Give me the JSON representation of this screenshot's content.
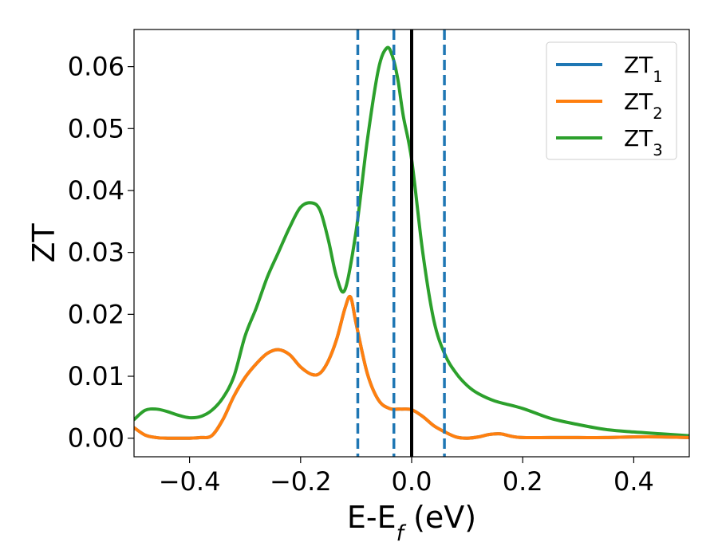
{
  "chart_data": {
    "type": "line",
    "xlabel": "E-E_f (eV)",
    "ylabel": "ZT",
    "xlim": [
      -0.5,
      0.5
    ],
    "ylim": [
      -0.003,
      0.066
    ],
    "x_ticks": [
      -0.4,
      -0.2,
      0.0,
      0.2,
      0.4
    ],
    "x_tick_labels": [
      "−0.4",
      "−0.2",
      "0.0",
      "0.2",
      "0.4"
    ],
    "y_ticks": [
      0.0,
      0.01,
      0.02,
      0.03,
      0.04,
      0.05,
      0.06
    ],
    "y_tick_labels": [
      "0.00",
      "0.01",
      "0.02",
      "0.03",
      "0.04",
      "0.05",
      "0.06"
    ],
    "grid": false,
    "legend_position": "top-right",
    "vertical_lines": [
      {
        "x": -0.097,
        "style": "dashed",
        "color": "#1f77b4"
      },
      {
        "x": -0.032,
        "style": "dashed",
        "color": "#1f77b4"
      },
      {
        "x": 0.0,
        "style": "solid",
        "color": "#000000"
      },
      {
        "x": 0.059,
        "style": "dashed",
        "color": "#1f77b4"
      }
    ],
    "series": [
      {
        "name": "ZT_1",
        "color": "#1f77b4",
        "x": [
          -0.5,
          -0.48,
          -0.46,
          -0.44,
          -0.42,
          -0.4,
          -0.38,
          -0.36,
          -0.34,
          -0.32,
          -0.3,
          -0.28,
          -0.26,
          -0.24,
          -0.22,
          -0.2,
          -0.18,
          -0.165,
          -0.15,
          -0.135,
          -0.12,
          -0.11,
          -0.1,
          -0.08,
          -0.06,
          -0.04,
          -0.02,
          0.0,
          0.02,
          0.04,
          0.06,
          0.08,
          0.1,
          0.12,
          0.14,
          0.16,
          0.18,
          0.2,
          0.25,
          0.3,
          0.35,
          0.4,
          0.45,
          0.5
        ],
        "y": [
          0.0017,
          0.0005,
          0.0001,
          0.0,
          0.0,
          0.0,
          0.0001,
          0.0004,
          0.003,
          0.0068,
          0.0098,
          0.012,
          0.0137,
          0.0143,
          0.0135,
          0.0115,
          0.0103,
          0.0105,
          0.0125,
          0.016,
          0.021,
          0.0228,
          0.0185,
          0.0105,
          0.0062,
          0.0048,
          0.0047,
          0.0046,
          0.0035,
          0.002,
          0.001,
          0.0002,
          0.0,
          0.0002,
          0.0006,
          0.0007,
          0.0003,
          0.0001,
          0.0001,
          0.0001,
          0.0001,
          0.0002,
          0.0002,
          0.0001
        ]
      },
      {
        "name": "ZT_2",
        "color": "#ff7f0e",
        "x": [
          -0.5,
          -0.48,
          -0.46,
          -0.44,
          -0.42,
          -0.4,
          -0.38,
          -0.36,
          -0.34,
          -0.32,
          -0.3,
          -0.28,
          -0.26,
          -0.24,
          -0.22,
          -0.2,
          -0.18,
          -0.165,
          -0.15,
          -0.135,
          -0.12,
          -0.11,
          -0.1,
          -0.08,
          -0.06,
          -0.04,
          -0.02,
          0.0,
          0.02,
          0.04,
          0.06,
          0.08,
          0.1,
          0.12,
          0.14,
          0.16,
          0.18,
          0.2,
          0.25,
          0.3,
          0.35,
          0.4,
          0.45,
          0.5
        ],
        "y": [
          0.0017,
          0.0005,
          0.0001,
          0.0,
          0.0,
          0.0,
          0.0001,
          0.0004,
          0.003,
          0.0068,
          0.0098,
          0.012,
          0.0137,
          0.0143,
          0.0135,
          0.0115,
          0.0103,
          0.0105,
          0.0125,
          0.016,
          0.021,
          0.0228,
          0.0185,
          0.0105,
          0.0062,
          0.0048,
          0.0047,
          0.0046,
          0.0035,
          0.002,
          0.001,
          0.0002,
          0.0,
          0.0002,
          0.0006,
          0.0007,
          0.0003,
          0.0001,
          0.0001,
          0.0001,
          0.0001,
          0.0002,
          0.0002,
          0.0001
        ]
      },
      {
        "name": "ZT_3",
        "color": "#2ca02c",
        "x": [
          -0.5,
          -0.48,
          -0.46,
          -0.44,
          -0.42,
          -0.4,
          -0.38,
          -0.36,
          -0.34,
          -0.32,
          -0.3,
          -0.28,
          -0.26,
          -0.24,
          -0.22,
          -0.2,
          -0.18,
          -0.165,
          -0.15,
          -0.135,
          -0.12,
          -0.1,
          -0.08,
          -0.06,
          -0.045,
          -0.035,
          -0.025,
          -0.015,
          0.0,
          0.02,
          0.04,
          0.06,
          0.08,
          0.1,
          0.12,
          0.15,
          0.2,
          0.25,
          0.3,
          0.35,
          0.4,
          0.45,
          0.5
        ],
        "y": [
          0.003,
          0.0045,
          0.0047,
          0.0043,
          0.0037,
          0.0033,
          0.0035,
          0.0045,
          0.0065,
          0.01,
          0.0165,
          0.021,
          0.026,
          0.03,
          0.034,
          0.0373,
          0.038,
          0.0368,
          0.032,
          0.026,
          0.024,
          0.0335,
          0.048,
          0.0595,
          0.063,
          0.0618,
          0.058,
          0.052,
          0.045,
          0.03,
          0.019,
          0.0135,
          0.0105,
          0.0085,
          0.0072,
          0.006,
          0.0048,
          0.0032,
          0.0022,
          0.0014,
          0.001,
          0.0007,
          0.0004
        ]
      }
    ]
  }
}
